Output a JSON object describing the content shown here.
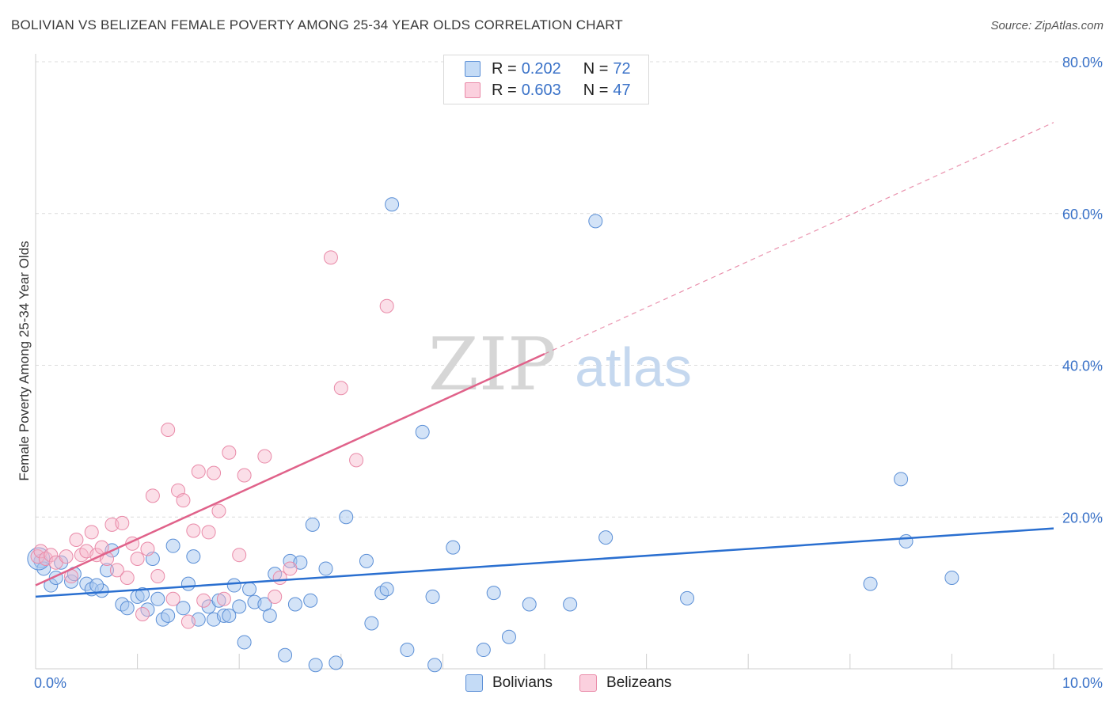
{
  "header": {
    "title": "BOLIVIAN VS BELIZEAN FEMALE POVERTY AMONG 25-34 YEAR OLDS CORRELATION CHART",
    "source": "Source: ZipAtlas.com"
  },
  "watermark": {
    "zip": "ZIP",
    "atlas": "atlas"
  },
  "legend": {
    "rows": [
      {
        "r_label": "R =",
        "r_value": "0.202",
        "n_label": "N =",
        "n_value": "72"
      },
      {
        "r_label": "R =",
        "r_value": "0.603",
        "n_label": "N =",
        "n_value": "47"
      }
    ]
  },
  "bottom_legend": [
    "Bolivians",
    "Belizeans"
  ],
  "colors": {
    "bolivians_fill": "#a8c8f0",
    "bolivians_stroke": "#5b8fd6",
    "bolivians_line": "#2a6fd0",
    "belizeans_fill": "#f7b8cc",
    "belizeans_stroke": "#e98aa8",
    "belizeans_line": "#e0628a",
    "axis_label": "#3a72c8",
    "grid": "#dcdcdc"
  },
  "chart_data": {
    "type": "scatter",
    "title": "BOLIVIAN VS BELIZEAN FEMALE POVERTY AMONG 25-34 YEAR OLDS CORRELATION CHART",
    "xlabel": "",
    "ylabel": "Female Poverty Among 25-34 Year Olds",
    "xlim": [
      0,
      10
    ],
    "ylim": [
      0,
      80
    ],
    "x_tick_labels": [
      "0.0%",
      "10.0%"
    ],
    "y_tick_labels": [
      "20.0%",
      "40.0%",
      "60.0%",
      "80.0%"
    ],
    "y_ticks": [
      20,
      40,
      60,
      80
    ],
    "x_minor_ticks": [
      1,
      2,
      3,
      4,
      5,
      6,
      7,
      8,
      9,
      10
    ],
    "grid": true,
    "legend_position": "top-center",
    "series": [
      {
        "name": "Bolivians",
        "r": 0.202,
        "n": 72,
        "trend": {
          "x": [
            0,
            10
          ],
          "y": [
            9.5,
            18.5
          ],
          "dashed_extension": false
        },
        "points": [
          [
            0.05,
            14.2
          ],
          [
            0.08,
            13.2
          ],
          [
            0.15,
            11.0
          ],
          [
            0.2,
            12.0
          ],
          [
            0.25,
            14.0
          ],
          [
            0.35,
            11.5
          ],
          [
            0.38,
            12.5
          ],
          [
            0.5,
            11.2
          ],
          [
            0.55,
            10.5
          ],
          [
            0.65,
            10.3
          ],
          [
            0.7,
            13.0
          ],
          [
            0.75,
            15.6
          ],
          [
            0.85,
            8.5
          ],
          [
            0.9,
            8.0
          ],
          [
            1.0,
            9.5
          ],
          [
            1.05,
            9.8
          ],
          [
            1.1,
            7.8
          ],
          [
            1.15,
            14.5
          ],
          [
            1.2,
            9.2
          ],
          [
            1.25,
            6.5
          ],
          [
            1.3,
            7.0
          ],
          [
            1.35,
            16.2
          ],
          [
            1.45,
            8.0
          ],
          [
            1.5,
            11.2
          ],
          [
            1.55,
            14.8
          ],
          [
            1.6,
            6.5
          ],
          [
            1.7,
            8.2
          ],
          [
            1.75,
            6.5
          ],
          [
            1.85,
            7.0
          ],
          [
            1.9,
            7.0
          ],
          [
            1.95,
            11.0
          ],
          [
            2.0,
            8.2
          ],
          [
            2.05,
            3.5
          ],
          [
            2.1,
            10.5
          ],
          [
            2.15,
            8.8
          ],
          [
            2.25,
            8.5
          ],
          [
            2.3,
            7.0
          ],
          [
            2.35,
            12.5
          ],
          [
            2.45,
            1.8
          ],
          [
            2.5,
            14.2
          ],
          [
            2.55,
            8.5
          ],
          [
            2.6,
            14.0
          ],
          [
            2.7,
            9.0
          ],
          [
            2.72,
            19.0
          ],
          [
            2.75,
            0.5
          ],
          [
            2.85,
            13.2
          ],
          [
            2.95,
            0.8
          ],
          [
            3.05,
            20.0
          ],
          [
            3.25,
            14.2
          ],
          [
            3.3,
            6.0
          ],
          [
            3.4,
            10.0
          ],
          [
            3.45,
            10.5
          ],
          [
            3.5,
            61.2
          ],
          [
            3.65,
            2.5
          ],
          [
            3.8,
            31.2
          ],
          [
            3.9,
            9.5
          ],
          [
            3.92,
            0.5
          ],
          [
            4.1,
            16.0
          ],
          [
            4.4,
            2.5
          ],
          [
            4.5,
            10.0
          ],
          [
            4.65,
            4.2
          ],
          [
            4.85,
            8.5
          ],
          [
            5.25,
            8.5
          ],
          [
            5.5,
            59.0
          ],
          [
            5.6,
            17.3
          ],
          [
            6.4,
            9.3
          ],
          [
            8.2,
            11.2
          ],
          [
            8.5,
            25.0
          ],
          [
            8.55,
            16.8
          ],
          [
            9.0,
            12.0
          ],
          [
            0.6,
            11.0
          ],
          [
            1.8,
            9.0
          ]
        ]
      },
      {
        "name": "Belizeans",
        "r": 0.603,
        "n": 47,
        "trend": {
          "x": [
            0,
            5.0
          ],
          "y": [
            11.0,
            41.5
          ],
          "dashed_extension_to": [
            10,
            72
          ]
        },
        "points": [
          [
            0.02,
            14.8
          ],
          [
            0.05,
            15.5
          ],
          [
            0.1,
            14.5
          ],
          [
            0.15,
            15.0
          ],
          [
            0.2,
            14.0
          ],
          [
            0.3,
            14.8
          ],
          [
            0.35,
            12.2
          ],
          [
            0.4,
            17.0
          ],
          [
            0.45,
            15.0
          ],
          [
            0.5,
            15.5
          ],
          [
            0.55,
            18.0
          ],
          [
            0.6,
            15.0
          ],
          [
            0.65,
            16.0
          ],
          [
            0.7,
            14.5
          ],
          [
            0.75,
            19.0
          ],
          [
            0.8,
            13.0
          ],
          [
            0.85,
            19.2
          ],
          [
            0.9,
            12.0
          ],
          [
            0.95,
            16.5
          ],
          [
            1.0,
            14.5
          ],
          [
            1.05,
            7.2
          ],
          [
            1.1,
            15.8
          ],
          [
            1.15,
            22.8
          ],
          [
            1.2,
            12.2
          ],
          [
            1.3,
            31.5
          ],
          [
            1.35,
            9.2
          ],
          [
            1.4,
            23.5
          ],
          [
            1.45,
            22.2
          ],
          [
            1.5,
            6.2
          ],
          [
            1.55,
            18.2
          ],
          [
            1.6,
            26.0
          ],
          [
            1.65,
            9.0
          ],
          [
            1.7,
            18.0
          ],
          [
            1.75,
            25.8
          ],
          [
            1.8,
            20.8
          ],
          [
            1.85,
            9.2
          ],
          [
            1.9,
            28.5
          ],
          [
            2.0,
            15.0
          ],
          [
            2.05,
            25.5
          ],
          [
            2.25,
            28.0
          ],
          [
            2.35,
            9.5
          ],
          [
            2.4,
            12.0
          ],
          [
            2.5,
            13.2
          ],
          [
            2.9,
            54.2
          ],
          [
            3.0,
            37.0
          ],
          [
            3.15,
            27.5
          ],
          [
            3.45,
            47.8
          ]
        ]
      }
    ]
  }
}
